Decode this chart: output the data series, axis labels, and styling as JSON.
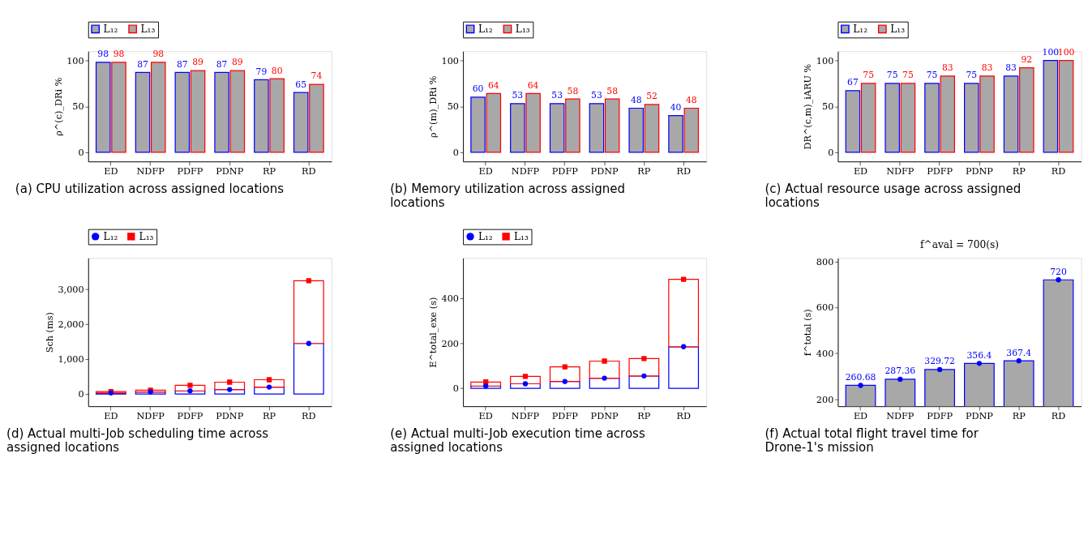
{
  "chart_data": [
    {
      "type": "bar",
      "ylabel": "ρ^(c)_DRi %",
      "categories": [
        "ED",
        "NDFP",
        "PDFP",
        "PDNP",
        "RP",
        "RD"
      ],
      "legend": "top",
      "data_labels": true,
      "ylim": [
        -10,
        110
      ],
      "yticks": [
        0,
        50,
        100
      ],
      "annotations": [
        "(a) CPU utilization across assigned locations"
      ],
      "series": [
        {
          "name": "L₁₂",
          "color": "#0000ff",
          "values": [
            98,
            87,
            87,
            87,
            79,
            65
          ]
        },
        {
          "name": "L₁₃",
          "color": "#ff0000",
          "values": [
            98,
            98,
            89,
            89,
            80,
            74
          ]
        }
      ]
    },
    {
      "type": "bar",
      "ylabel": "ρ^(m)_DRi %",
      "categories": [
        "ED",
        "NDFP",
        "PDFP",
        "PDNP",
        "RP",
        "RD"
      ],
      "legend": "top",
      "data_labels": true,
      "ylim": [
        -10,
        110
      ],
      "yticks": [
        0,
        50,
        100
      ],
      "annotations": [
        "(b) Memory utilization across assigned locations"
      ],
      "series": [
        {
          "name": "L₁₂",
          "color": "#0000ff",
          "values": [
            60,
            53,
            53,
            53,
            48,
            40
          ]
        },
        {
          "name": "L₁₃",
          "color": "#ff0000",
          "values": [
            64,
            64,
            58,
            58,
            52,
            48
          ]
        }
      ]
    },
    {
      "type": "bar",
      "ylabel": "DR^(c,m)_iARU %",
      "categories": [
        "ED",
        "NDFP",
        "PDFP",
        "PDNP",
        "RP",
        "RD"
      ],
      "legend": "top",
      "data_labels": true,
      "ylim": [
        -10,
        110
      ],
      "yticks": [
        0,
        50,
        100
      ],
      "annotations": [
        "(c) Actual resource usage across assigned locations"
      ],
      "series": [
        {
          "name": "L₁₂",
          "color": "#0000ff",
          "values": [
            67,
            75,
            75,
            75,
            83,
            100
          ]
        },
        {
          "name": "L₁₃",
          "color": "#ff0000",
          "values": [
            75,
            75,
            83,
            83,
            92,
            100
          ]
        }
      ]
    },
    {
      "type": "bar",
      "stacked": true,
      "ylabel": "Sch (ms)",
      "categories": [
        "ED",
        "NDFP",
        "PDFP",
        "PDNP",
        "RP",
        "RD"
      ],
      "legend": "top",
      "ylim": [
        -350,
        3900
      ],
      "yticks": [
        0,
        {
          "value": 1000,
          "label": "1,000"
        },
        {
          "value": 2000,
          "label": "2,000"
        },
        {
          "value": 3000,
          "label": "3,000"
        }
      ],
      "annotations": [
        "(d) Actual multi-Job scheduling time across assigned locations"
      ],
      "series": [
        {
          "color": "#0000ff",
          "values": [
            30,
            60,
            90,
            130,
            200,
            1450
          ]
        },
        {
          "color": "#ff0000",
          "values": [
            40,
            50,
            160,
            210,
            210,
            1800
          ]
        },
        {
          "type": "scatter",
          "name": "L₁₂",
          "color": "#0000ff",
          "marker": "circle",
          "x": [
            "ED",
            "NDFP",
            "PDFP",
            "PDNP",
            "RP",
            "RD"
          ],
          "values": [
            30,
            60,
            90,
            130,
            200,
            1450
          ]
        },
        {
          "type": "scatter",
          "name": "L₁₃",
          "color": "#ff0000",
          "marker": "square",
          "x": [
            "ED",
            "NDFP",
            "PDFP",
            "PDNP",
            "RP",
            "RD"
          ],
          "values": [
            70,
            110,
            250,
            340,
            410,
            3250
          ]
        }
      ]
    },
    {
      "type": "bar",
      "stacked": true,
      "ylabel": "E^total_exe (s)",
      "categories": [
        "ED",
        "NDFP",
        "PDFP",
        "PDNP",
        "RP",
        "RD"
      ],
      "legend": "top",
      "ylim": [
        -80,
        580
      ],
      "yticks": [
        0,
        200,
        400
      ],
      "annotations": [
        "(e) Actual multi-Job execution time across assigned locations"
      ],
      "series": [
        {
          "color": "#0000ff",
          "values": [
            10,
            20,
            30,
            45,
            55,
            185
          ]
        },
        {
          "color": "#ff0000",
          "values": [
            18,
            33,
            65,
            76,
            77,
            300
          ]
        },
        {
          "type": "scatter",
          "name": "L₁₂",
          "color": "#0000ff",
          "marker": "circle",
          "x": [
            "ED",
            "NDFP",
            "PDFP",
            "PDNP",
            "RP",
            "RD"
          ],
          "values": [
            10,
            20,
            30,
            45,
            55,
            185
          ]
        },
        {
          "type": "scatter",
          "name": "L₁₃",
          "color": "#ff0000",
          "marker": "square",
          "x": [
            "ED",
            "NDFP",
            "PDFP",
            "PDNP",
            "RP",
            "RD"
          ],
          "values": [
            28,
            53,
            95,
            121,
            132,
            485
          ]
        }
      ]
    },
    {
      "type": "bar",
      "title": "f^aval = 700(s)",
      "ylabel": "f^total (s)",
      "categories": [
        "ED",
        "NDFP",
        "PDFP",
        "PDNP",
        "RP",
        "RD"
      ],
      "ylim": [
        170,
        815
      ],
      "yticks": [
        200,
        400,
        600,
        800
      ],
      "annotations": [
        "(f) Actual total flight travel time for Drone-1's mission"
      ],
      "series": [
        {
          "color": "#0000ff",
          "values": [
            260.68,
            287.36,
            329.72,
            356.4,
            367.4,
            720
          ],
          "value_labels": [
            "260.68",
            "287.36",
            "329.72",
            "356.4",
            "367.4",
            "720"
          ]
        },
        {
          "type": "scatter",
          "color": "#0000ff",
          "marker": "circle",
          "x": [
            "ED",
            "NDFP",
            "PDFP",
            "PDNP",
            "RP",
            "RD"
          ],
          "values": [
            260.68,
            287.36,
            329.72,
            356.4,
            367.4,
            720
          ]
        }
      ]
    }
  ]
}
